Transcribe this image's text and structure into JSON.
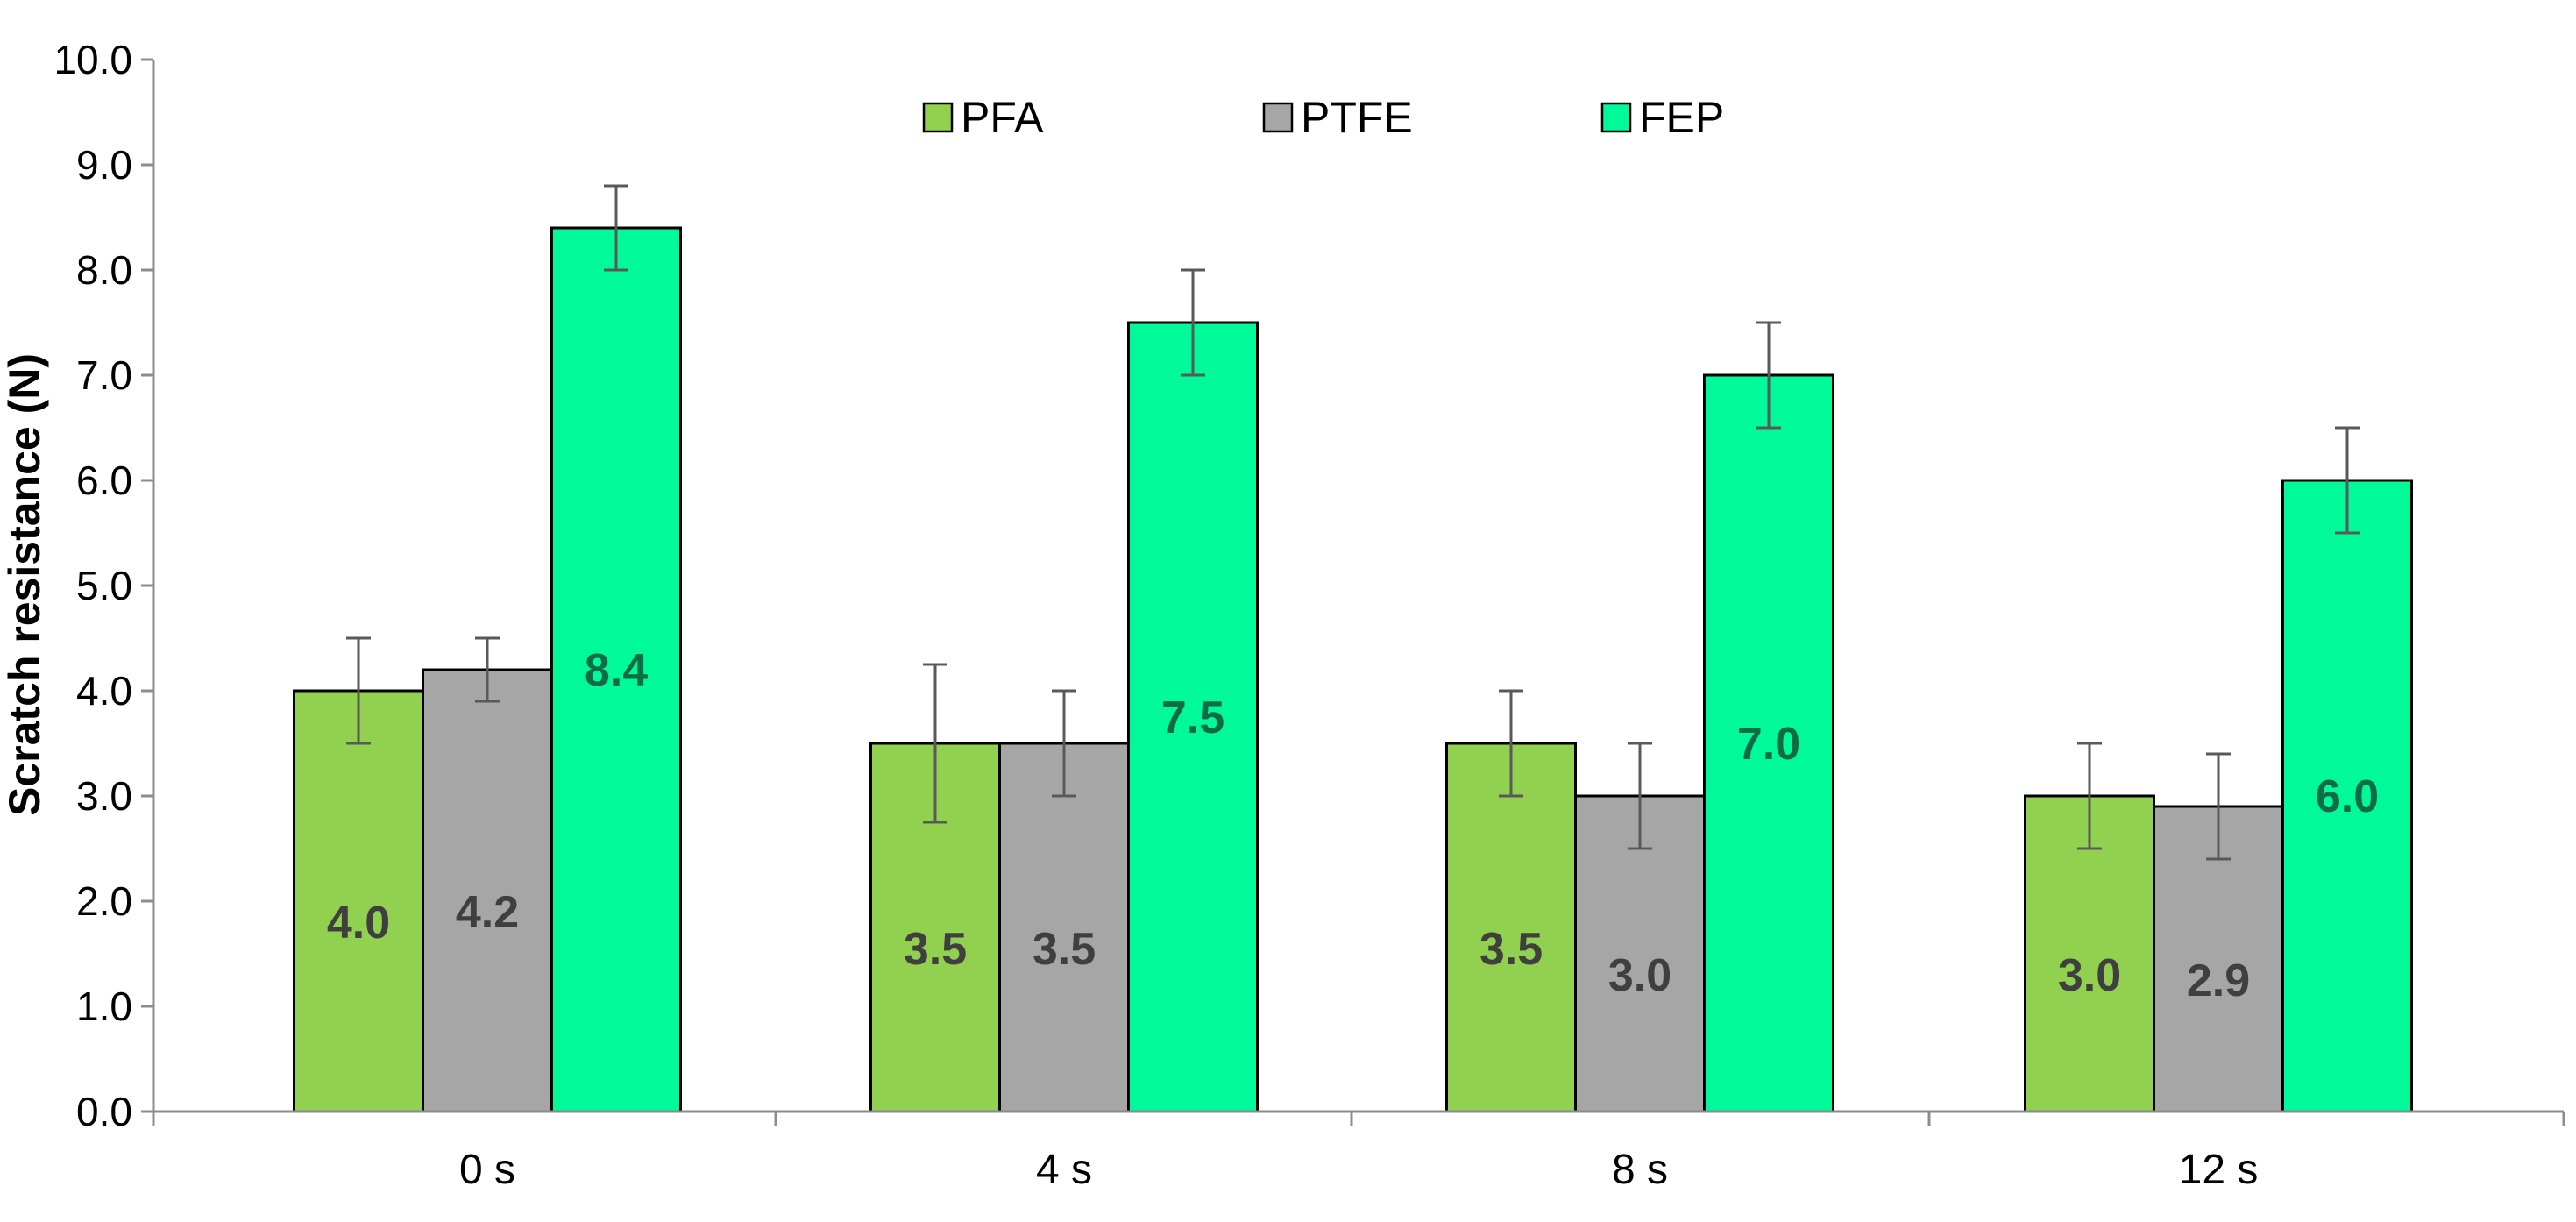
{
  "chart_data": {
    "type": "bar",
    "title": "",
    "xlabel": "",
    "ylabel": "Scratch resistance (N)",
    "ylim": [
      0,
      10
    ],
    "ytick_step": 1,
    "ytick_labels": [
      "0.0",
      "1.0",
      "2.0",
      "3.0",
      "4.0",
      "5.0",
      "6.0",
      "7.0",
      "8.0",
      "9.0",
      "10.0"
    ],
    "categories": [
      "0 s",
      "4 s",
      "8 s",
      "12 s"
    ],
    "grid": false,
    "legend_position": "top-center",
    "series": [
      {
        "name": "PFA",
        "color": "#92D050",
        "label_color": "#3F3F3F",
        "values": [
          4.0,
          3.5,
          3.5,
          3.0
        ],
        "value_labels": [
          "4.0",
          "3.5",
          "3.5",
          "3.0"
        ],
        "errors": [
          0.5,
          0.75,
          0.5,
          0.5
        ]
      },
      {
        "name": "PTFE",
        "color": "#A6A6A6",
        "label_color": "#3F3F3F",
        "values": [
          4.2,
          3.5,
          3.0,
          2.9
        ],
        "value_labels": [
          "4.2",
          "3.5",
          "3.0",
          "2.9"
        ],
        "errors": [
          0.3,
          0.5,
          0.5,
          0.5
        ]
      },
      {
        "name": "FEP",
        "color": "#00FA9A",
        "label_color": "#0E6B47",
        "values": [
          8.4,
          7.5,
          7.0,
          6.0
        ],
        "value_labels": [
          "8.4",
          "7.5",
          "7.0",
          "6.0"
        ],
        "errors": [
          0.4,
          0.5,
          0.5,
          0.5
        ]
      }
    ]
  }
}
